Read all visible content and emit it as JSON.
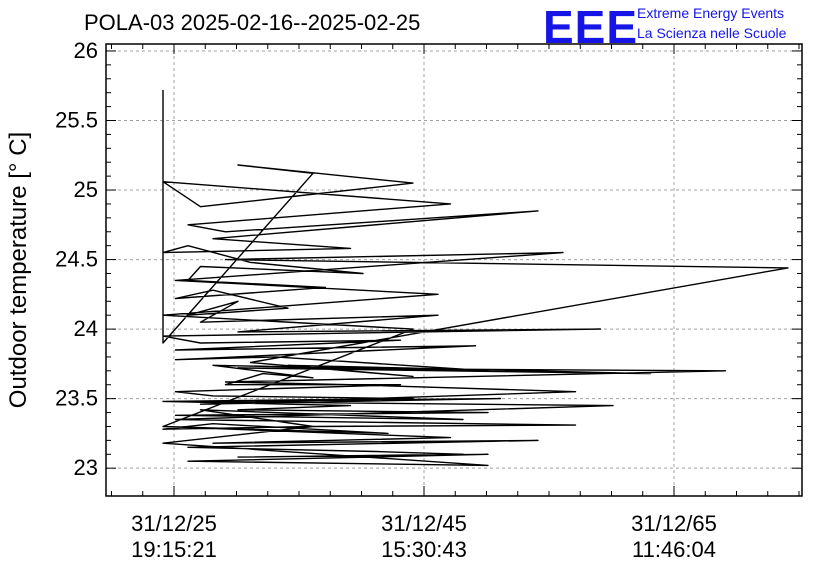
{
  "header": {
    "title": "POLA-03 2025-02-16--2025-02-25",
    "logo_text": "EEE",
    "logo_line1": "Extreme Energy Events",
    "logo_line2": "La Scienza nelle Scuole",
    "logo_color": "#1515e6"
  },
  "chart_data": {
    "type": "line",
    "title": "POLA-03 2025-02-16--2025-02-25",
    "ylabel": "Outdoor temperature [° C]",
    "xlabel": "",
    "ylim": [
      22.8,
      26.05
    ],
    "yticks": [
      "23",
      "23.5",
      "24",
      "24.5",
      "25",
      "25.5",
      "26"
    ],
    "xticks": [
      {
        "date": "31/12/25",
        "time": "19:15:21"
      },
      {
        "date": "31/12/45",
        "time": "15:30:43"
      },
      {
        "date": "31/12/65",
        "time": "11:46:04"
      }
    ],
    "grid": true,
    "series": [
      {
        "color": "#000000",
        "x": [
          0.0,
          0.0,
          0.0,
          0.0,
          0.0,
          0.0,
          0.0,
          0.0,
          0.0,
          0.0,
          1.2,
          0.6,
          2.0,
          1.0,
          0.3,
          0.0,
          2.3,
          0.2,
          0.5,
          3.0,
          0.4,
          1.5,
          0.0,
          0.2,
          0.7,
          1.6,
          0.3,
          0.2,
          1.3,
          0.1,
          0.4,
          1.0,
          0.2,
          0.6,
          0.3,
          2.2,
          0.6,
          3.5,
          0.0,
          0.3,
          1.9,
          0.1,
          2.5,
          0.1,
          0.9,
          2.6,
          0.4,
          1.2,
          0.8,
          0.5,
          1.9,
          0.1,
          0.4,
          2.0,
          0.0,
          1.5,
          0.6,
          2.6,
          0.1,
          2.4,
          0.3,
          1.2,
          0.0,
          0.4,
          1.8,
          0.0,
          2.3,
          0.4,
          3.0,
          0.2,
          1.7,
          2.4,
          0.6,
          2.6,
          0.2,
          2.6,
          0.0,
          1.2,
          3.3,
          0.1,
          1.8,
          3.6,
          0.2,
          2.7,
          0.3,
          3.3,
          1.5,
          0.5,
          4.5,
          0.6,
          3.9,
          1.0,
          2.0,
          0.7,
          5.0,
          0.5,
          3.2,
          0.1,
          2.2,
          0.0,
          2.0,
          0.0
        ],
        "y": [
          25.72,
          25.35,
          25.2,
          24.95,
          24.75,
          24.65,
          24.55,
          24.3,
          24.1,
          23.9,
          25.12,
          25.18,
          25.05,
          24.95,
          24.88,
          25.06,
          24.9,
          24.75,
          24.7,
          24.85,
          24.65,
          24.58,
          24.55,
          24.6,
          24.48,
          24.4,
          24.45,
          24.35,
          24.3,
          24.22,
          24.28,
          24.15,
          24.1,
          24.2,
          24.05,
          24.1,
          23.98,
          24.0,
          23.95,
          23.9,
          23.92,
          23.85,
          23.88,
          23.78,
          23.8,
          23.7,
          23.74,
          23.65,
          23.68,
          23.6,
          23.6,
          23.55,
          23.52,
          23.5,
          23.48,
          23.45,
          23.42,
          23.4,
          23.38,
          23.35,
          23.42,
          23.3,
          23.28,
          23.32,
          23.25,
          23.3,
          23.22,
          23.18,
          23.2,
          23.15,
          23.12,
          23.1,
          23.08,
          23.1,
          23.05,
          23.02,
          23.18,
          23.3,
          23.31,
          23.35,
          23.4,
          23.45,
          23.48,
          23.5,
          23.46,
          23.55,
          23.6,
          23.62,
          23.7,
          23.72,
          23.68,
          23.74,
          23.66,
          23.76,
          24.44,
          24.5,
          24.55,
          24.35,
          24.25,
          24.1,
          24.0,
          23.3
        ]
      }
    ]
  }
}
